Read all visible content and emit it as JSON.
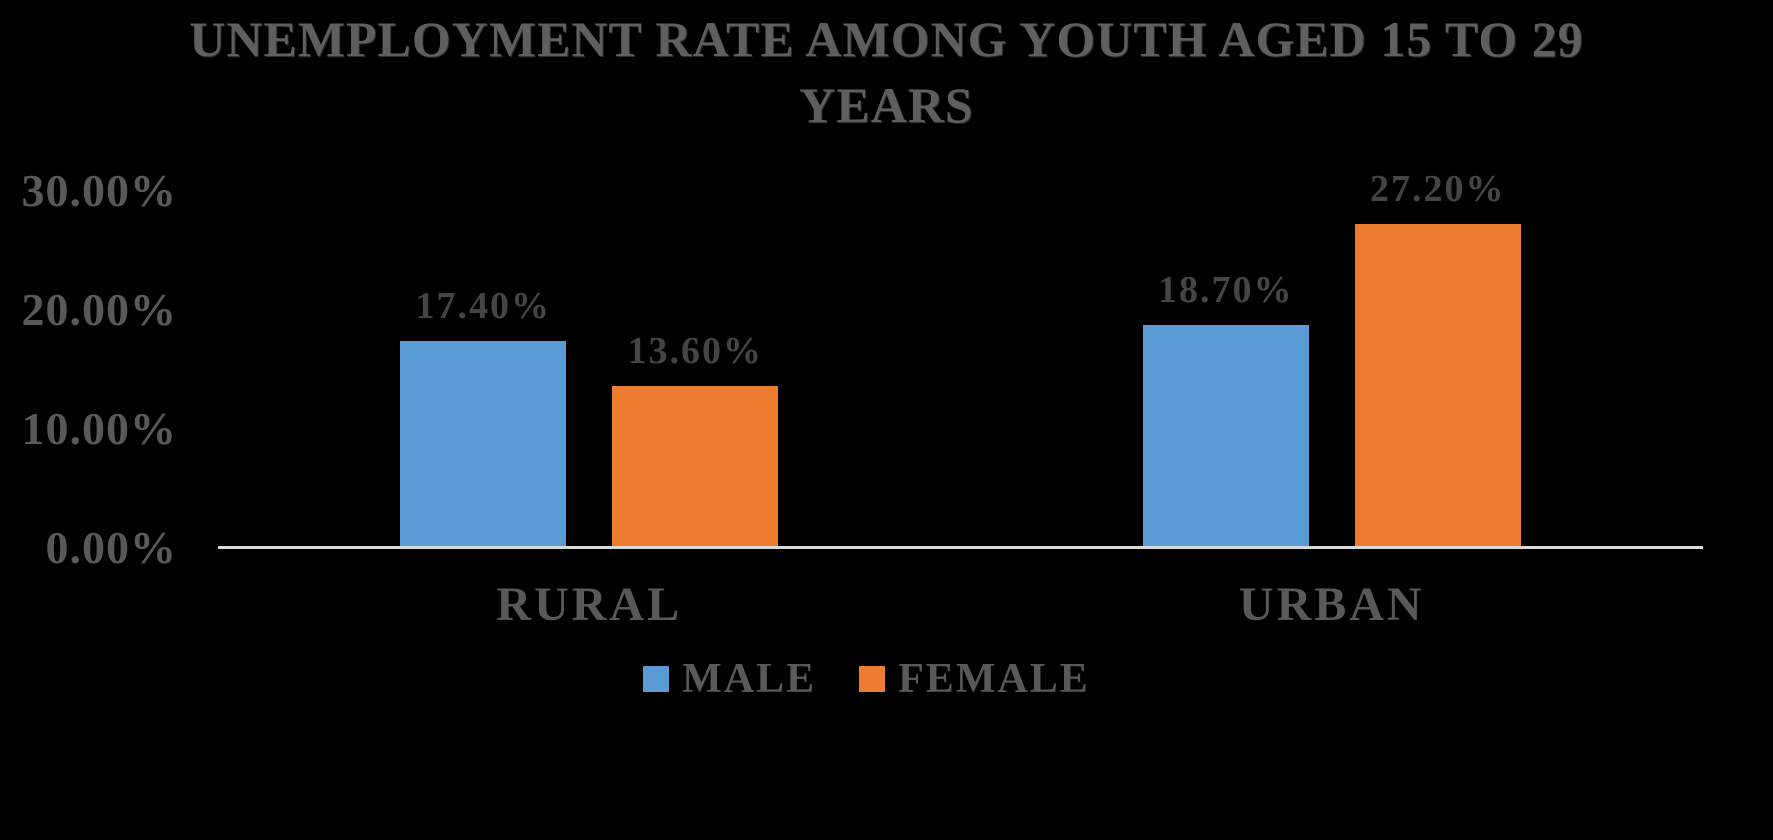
{
  "title": {
    "line1": "UNEMPLOYMENT RATE AMONG YOUTH AGED 15 TO 29",
    "line2": "YEARS"
  },
  "chart_data": {
    "type": "bar",
    "title": "UNEMPLOYMENT RATE AMONG YOUTH AGED 15 TO 29 YEARS",
    "categories": [
      "RURAL",
      "URBAN"
    ],
    "series": [
      {
        "name": "MALE",
        "color": "#5b9bd5",
        "values": [
          17.4,
          18.7
        ],
        "data_labels": [
          "17.40%",
          "18.70%"
        ]
      },
      {
        "name": "FEMALE",
        "color": "#ed7d31",
        "values": [
          13.6,
          27.2
        ],
        "data_labels": [
          "13.60%",
          "27.20%"
        ]
      }
    ],
    "y_axis": {
      "min": 0,
      "max": 30,
      "tick_step": 10,
      "tick_values": [
        0,
        10,
        20,
        30
      ],
      "tick_labels": [
        "0.00%",
        "10.00%",
        "20.00%",
        "30.00%"
      ]
    },
    "xlabel": "",
    "ylabel": "",
    "grid": false,
    "data_labels_shown": true,
    "legend_position": "bottom"
  },
  "colors": {
    "male_series": "#5b9bd5",
    "female_series": "#ed7d31",
    "tick_text": "#595959",
    "category_text": "#595959",
    "legend_text": "#595959",
    "title_text": "#5f5f5f",
    "data_label_text": "#454545",
    "axis_line": "#d9d9d9",
    "background": "#000000"
  }
}
